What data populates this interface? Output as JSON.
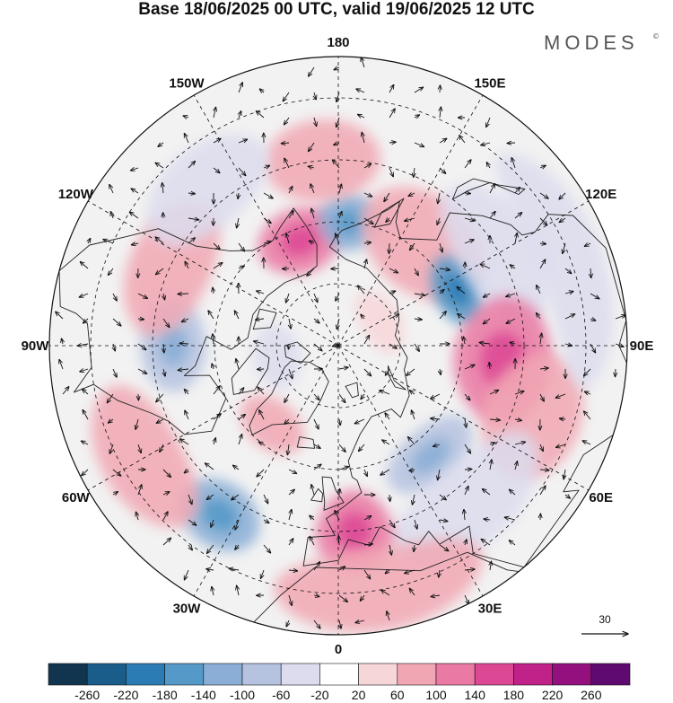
{
  "title": "Base 18/06/2025 00 UTC, valid 19/06/2025 12 UTC",
  "brand": {
    "name": "MODES",
    "mark": "©"
  },
  "longitude_labels": [
    {
      "text": "180",
      "lon": 180
    },
    {
      "text": "150E",
      "lon": 150
    },
    {
      "text": "120E",
      "lon": 120
    },
    {
      "text": "90E",
      "lon": 90
    },
    {
      "text": "60E",
      "lon": 60
    },
    {
      "text": "30E",
      "lon": 30
    },
    {
      "text": "0",
      "lon": 0
    },
    {
      "text": "30W",
      "lon": -30
    },
    {
      "text": "60W",
      "lon": -60
    },
    {
      "text": "90W",
      "lon": -90
    },
    {
      "text": "120W",
      "lon": -120
    },
    {
      "text": "150W",
      "lon": -150
    }
  ],
  "reference_vector": {
    "label": "30"
  },
  "colorbar": {
    "labels": [
      "-260",
      "-220",
      "-180",
      "-140",
      "-100",
      "-60",
      "-20",
      "20",
      "60",
      "100",
      "140",
      "180",
      "220",
      "260"
    ],
    "colors": [
      "#12354f",
      "#1a5d8a",
      "#2b7cb5",
      "#5599c8",
      "#8aaed6",
      "#b5c2e0",
      "#dcdcee",
      "#ffffff",
      "#f7d6d9",
      "#f1a7b3",
      "#ea79a3",
      "#dd4895",
      "#c0228a",
      "#93107e",
      "#5e0a70"
    ]
  },
  "anomaly_blobs": [
    {
      "lat": 63,
      "lon": -160,
      "value": 120,
      "rlat": 8,
      "rlon": 22
    },
    {
      "lat": 60,
      "lon": 175,
      "value": -140,
      "rlat": 7,
      "rlon": 14
    },
    {
      "lat": 45,
      "lon": -175,
      "value": 60,
      "rlat": 10,
      "rlon": 18
    },
    {
      "lat": 58,
      "lon": 140,
      "value": 60,
      "rlat": 12,
      "rlon": 30
    },
    {
      "lat": 58,
      "lon": 115,
      "value": -180,
      "rlat": 6,
      "rlon": 16
    },
    {
      "lat": 45,
      "lon": 120,
      "value": -40,
      "rlat": 10,
      "rlon": 25
    },
    {
      "lat": 50,
      "lon": 85,
      "value": 100,
      "rlat": 12,
      "rlon": 22
    },
    {
      "lat": 40,
      "lon": 70,
      "value": 60,
      "rlat": 12,
      "rlon": 18
    },
    {
      "lat": 55,
      "lon": 40,
      "value": -100,
      "rlat": 7,
      "rlon": 20
    },
    {
      "lat": 40,
      "lon": 40,
      "value": -40,
      "rlat": 10,
      "rlon": 25
    },
    {
      "lat": 45,
      "lon": 5,
      "value": 100,
      "rlat": 10,
      "rlon": 12
    },
    {
      "lat": 30,
      "lon": 10,
      "value": 60,
      "rlat": 10,
      "rlon": 25
    },
    {
      "lat": 40,
      "lon": -35,
      "value": -140,
      "rlat": 8,
      "rlon": 12
    },
    {
      "lat": 35,
      "lon": -60,
      "value": 60,
      "rlat": 10,
      "rlon": 20
    },
    {
      "lat": 50,
      "lon": -90,
      "value": -100,
      "rlat": 8,
      "rlon": 16
    },
    {
      "lat": 45,
      "lon": -115,
      "value": 60,
      "rlat": 10,
      "rlon": 22
    },
    {
      "lat": 40,
      "lon": -140,
      "value": -60,
      "rlat": 10,
      "rlon": 20
    },
    {
      "lat": 75,
      "lon": -80,
      "value": -60,
      "rlat": 6,
      "rlon": 30
    },
    {
      "lat": 78,
      "lon": 120,
      "value": 40,
      "rlat": 5,
      "rlon": 40
    },
    {
      "lat": 65,
      "lon": -40,
      "value": 60,
      "rlat": 6,
      "rlon": 20
    },
    {
      "lat": 30,
      "lon": 110,
      "value": -40,
      "rlat": 8,
      "rlon": 30
    }
  ]
}
